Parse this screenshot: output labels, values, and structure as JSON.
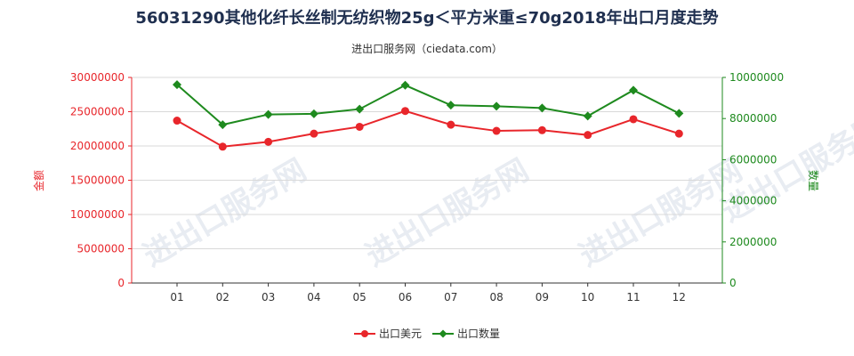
{
  "title": "56031290其他化纤长丝制无纺织物25g＜平方米重≤70g2018年出口月度走势",
  "subtitle": "进出口服务网（ciedata.com）",
  "watermark": "进出口服务网",
  "chart_data": {
    "type": "line",
    "categories": [
      "01",
      "02",
      "03",
      "04",
      "05",
      "06",
      "07",
      "08",
      "09",
      "10",
      "11",
      "12"
    ],
    "series": [
      {
        "name": "出口美元",
        "axis": "left",
        "color": "#e8262b",
        "values": [
          23700000,
          19900000,
          20600000,
          21800000,
          22800000,
          25100000,
          23100000,
          22200000,
          22300000,
          21600000,
          23900000,
          21800000
        ]
      },
      {
        "name": "出口数量",
        "axis": "right",
        "color": "#1e8a1e",
        "values": [
          9650000,
          7700000,
          8200000,
          8230000,
          8460000,
          9620000,
          8650000,
          8600000,
          8510000,
          8120000,
          9380000,
          8250000
        ]
      }
    ],
    "y_left": {
      "label": "金额",
      "range": [
        0,
        30000000
      ],
      "ticks": [
        "0",
        "5000000",
        "10000000",
        "15000000",
        "20000000",
        "25000000",
        "30000000"
      ],
      "color": "#e8262b"
    },
    "y_right": {
      "label": "数量",
      "range": [
        0,
        10000000
      ],
      "ticks": [
        "0",
        "2000000",
        "4000000",
        "6000000",
        "8000000",
        "10000000"
      ],
      "color": "#1e8a1e"
    },
    "grid": "horizontal",
    "legend": "bottom-center"
  }
}
